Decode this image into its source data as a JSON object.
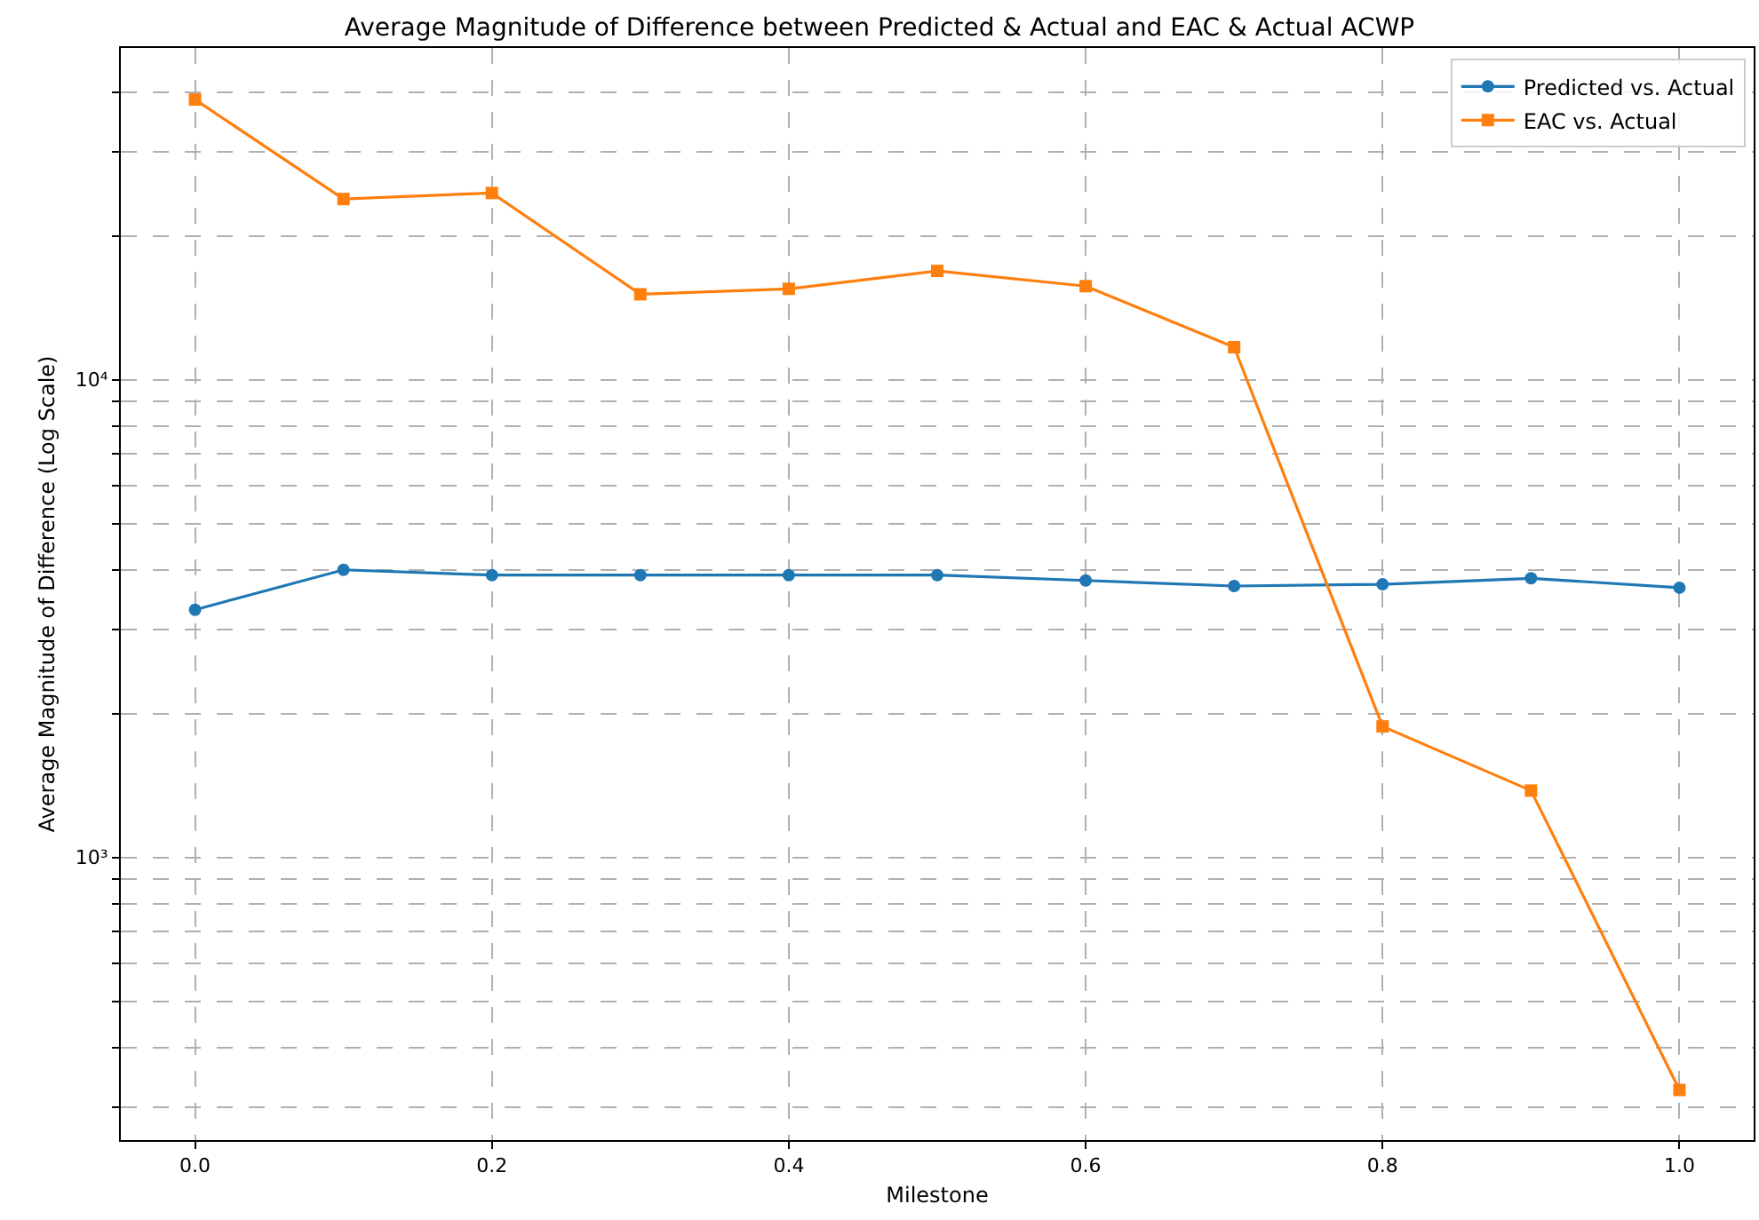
{
  "chart_data": {
    "type": "line",
    "title": "Average Magnitude of Difference between Predicted & Actual and EAC & Actual ACWP",
    "xlabel": "Milestone",
    "ylabel": "Average Magnitude of Difference (Log Scale)",
    "x": [
      0.0,
      0.1,
      0.2,
      0.3,
      0.4,
      0.5,
      0.6,
      0.7,
      0.8,
      0.9,
      1.0
    ],
    "series": [
      {
        "name": "Predicted vs. Actual",
        "color": "#1f77b4",
        "marker": "circle",
        "values": [
          3300,
          4000,
          3900,
          3900,
          3900,
          3900,
          3800,
          3700,
          3730,
          3840,
          3670
        ]
      },
      {
        "name": "EAC vs. Actual",
        "color": "#ff7f0e",
        "marker": "square",
        "values": [
          38600,
          23900,
          24600,
          15100,
          15500,
          16900,
          15700,
          11700,
          1880,
          1380,
          326
        ]
      }
    ],
    "log": "y",
    "xlim": [
      -0.05,
      1.05
    ],
    "xticks": [
      {
        "value": 0,
        "label": "0.0"
      },
      {
        "value": 0.2,
        "label": "0.2"
      },
      {
        "value": 0.4,
        "label": "0.4"
      },
      {
        "value": 0.6,
        "label": "0.6"
      },
      {
        "value": 0.8,
        "label": "0.8"
      },
      {
        "value": 1,
        "label": "1.0"
      }
    ],
    "ylim": [
      256,
      49500
    ],
    "yticks": [
      {
        "value": 300,
        "label": null
      },
      {
        "value": 400,
        "label": null
      },
      {
        "value": 500,
        "label": null
      },
      {
        "value": 600,
        "label": null
      },
      {
        "value": 700,
        "label": null
      },
      {
        "value": 800,
        "label": null
      },
      {
        "value": 900,
        "label": null
      },
      {
        "value": 1000,
        "label": "10³"
      },
      {
        "value": 2000,
        "label": null
      },
      {
        "value": 3000,
        "label": null
      },
      {
        "value": 4000,
        "label": null
      },
      {
        "value": 5000,
        "label": null
      },
      {
        "value": 6000,
        "label": null
      },
      {
        "value": 7000,
        "label": null
      },
      {
        "value": 8000,
        "label": null
      },
      {
        "value": 9000,
        "label": null
      },
      {
        "value": 10000,
        "label": "10⁴"
      },
      {
        "value": 20000,
        "label": null
      },
      {
        "value": 30000,
        "label": null
      },
      {
        "value": 40000,
        "label": null
      }
    ],
    "grid": true,
    "legend": "top right",
    "line_style": "solid"
  }
}
